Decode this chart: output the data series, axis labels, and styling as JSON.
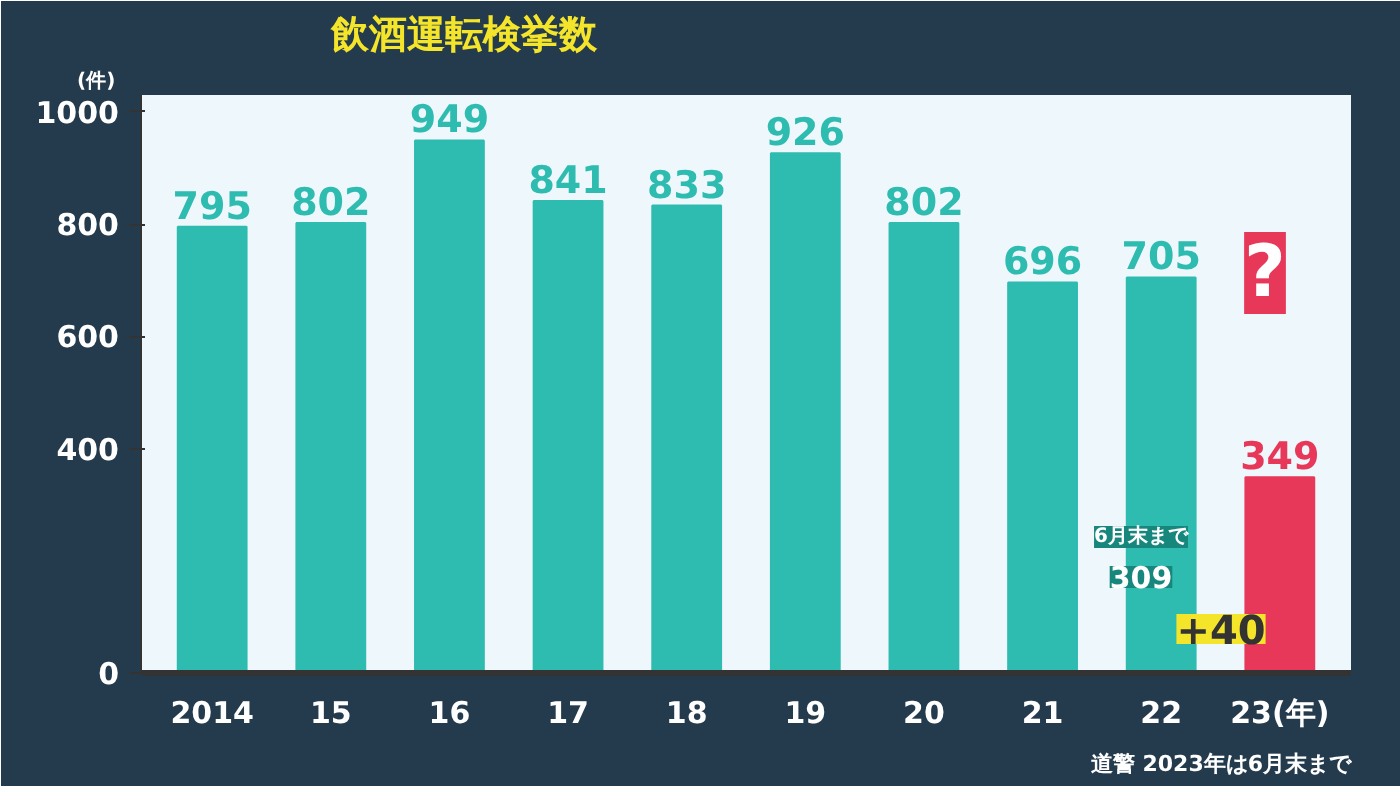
{
  "chart_data": {
    "type": "bar",
    "title": "飲酒運転検挙数",
    "ylabel": "(件)",
    "categories": [
      "2014",
      "15",
      "16",
      "17",
      "18",
      "19",
      "20",
      "21",
      "22",
      "23(年)"
    ],
    "values": [
      795,
      802,
      949,
      841,
      833,
      926,
      802,
      696,
      705,
      349
    ],
    "colors": [
      "#2fbcb0",
      "#2fbcb0",
      "#2fbcb0",
      "#2fbcb0",
      "#2fbcb0",
      "#2fbcb0",
      "#2fbcb0",
      "#2fbcb0",
      "#2fbcb0",
      "#e8385a"
    ],
    "data_labels": true,
    "ylim": [
      0,
      1030
    ],
    "yticks": [
      0,
      400,
      600,
      800,
      1000
    ],
    "grid": false,
    "annotations": [
      "?",
      "6月末まで",
      "309",
      "+40",
      "道警 2023年は6月末まで"
    ]
  }
}
